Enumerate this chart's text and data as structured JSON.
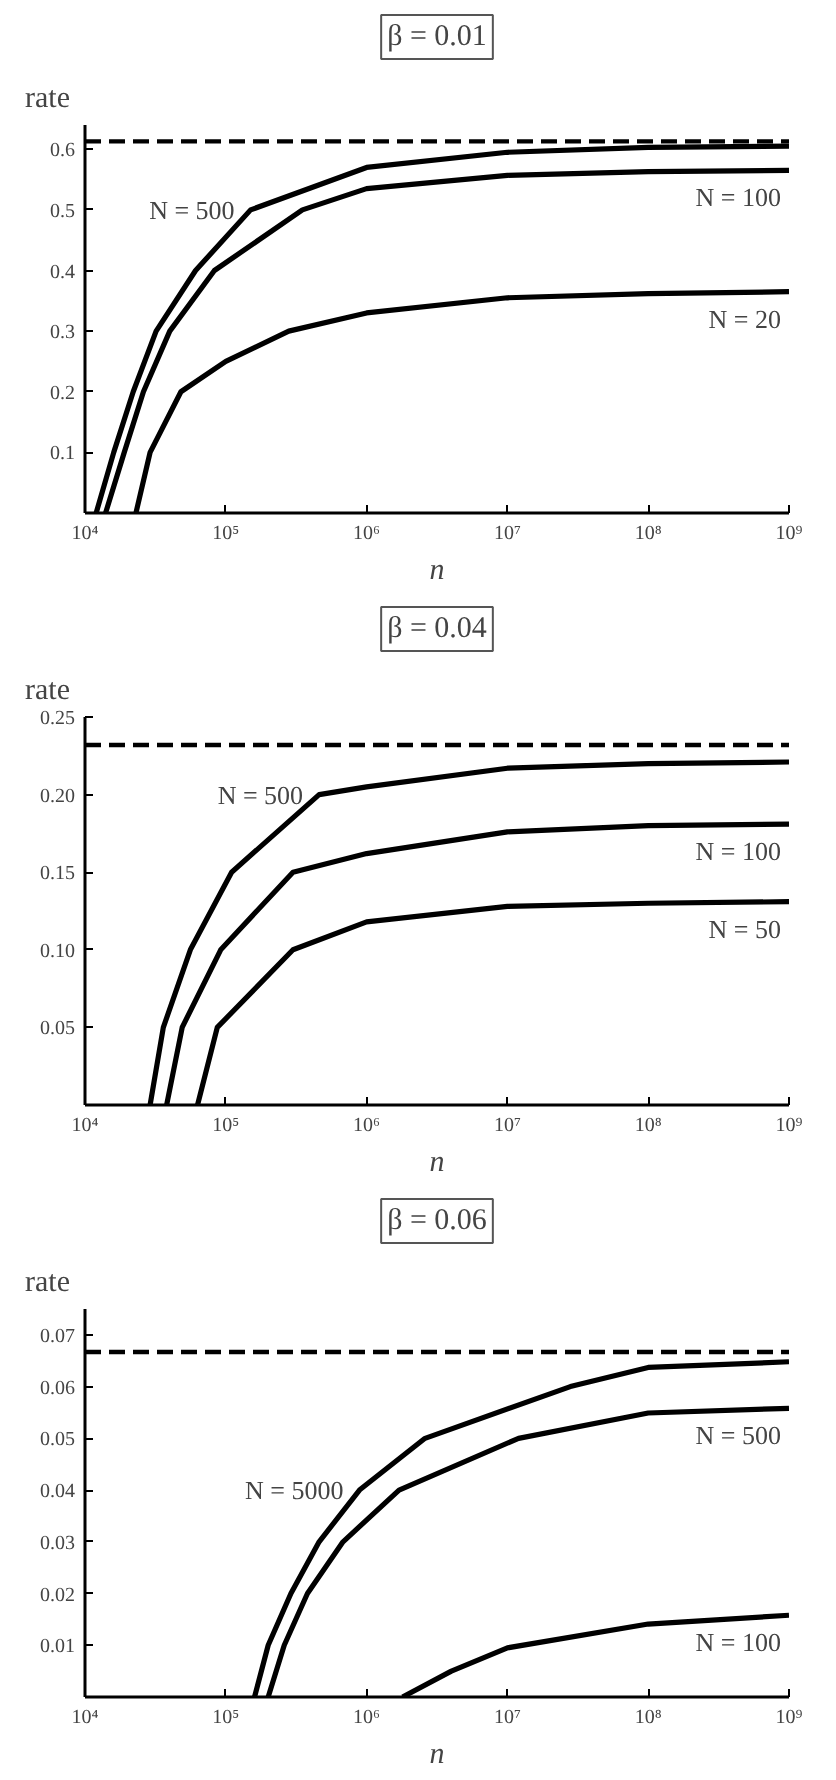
{
  "chart_data": [
    {
      "type": "line",
      "title": "β = 0.01",
      "xlabel": "n",
      "ylabel": "rate",
      "log": "x",
      "line_style": "solid",
      "xlim": [
        10000,
        1000000000
      ],
      "ylim": [
        0,
        0.64
      ],
      "xticks": [
        {
          "value": 10000,
          "label": "10⁴"
        },
        {
          "value": 100000,
          "label": "10⁵"
        },
        {
          "value": 1000000,
          "label": "10⁶"
        },
        {
          "value": 10000000,
          "label": "10⁷"
        },
        {
          "value": 100000000,
          "label": "10⁸"
        },
        {
          "value": 1000000000,
          "label": "10⁹"
        }
      ],
      "yticks": [
        0.1,
        0.2,
        0.3,
        0.4,
        0.5,
        0.6
      ],
      "series": [
        {
          "color": "#000000",
          "x": [
            12000,
            16000,
            22000,
            32000,
            61000,
            150000,
            1000000,
            10000000,
            100000000,
            1000000000
          ],
          "values": [
            0,
            0.1,
            0.2,
            0.3,
            0.4,
            0.5,
            0.57,
            0.595,
            0.603,
            0.605
          ]
        },
        {
          "color": "#000000",
          "x": [
            14000,
            19000,
            26000,
            40000,
            83000,
            350000,
            1000000,
            10000000,
            100000000,
            1000000000
          ],
          "values": [
            0,
            0.1,
            0.2,
            0.3,
            0.4,
            0.5,
            0.535,
            0.557,
            0.563,
            0.565
          ]
        },
        {
          "color": "#000000",
          "x": [
            23000,
            29000,
            48000,
            100000,
            280000,
            1000000,
            10000000,
            100000000,
            1000000000
          ],
          "values": [
            0,
            0.1,
            0.2,
            0.25,
            0.3,
            0.33,
            0.355,
            0.362,
            0.365
          ]
        }
      ],
      "ref_lines": [
        {
          "axis": "y",
          "value": 0.613,
          "label": null,
          "line_style": "dashed",
          "color": "#000000"
        }
      ],
      "annotations": [
        "N = 500",
        "N = 100",
        "N = 20"
      ]
    },
    {
      "type": "line",
      "title": "β = 0.04",
      "xlabel": "n",
      "ylabel": "rate",
      "log": "x",
      "line_style": "solid",
      "xlim": [
        10000,
        1000000000
      ],
      "ylim": [
        0,
        0.25
      ],
      "xticks": [
        {
          "value": 10000,
          "label": "10⁴"
        },
        {
          "value": 100000,
          "label": "10⁵"
        },
        {
          "value": 1000000,
          "label": "10⁶"
        },
        {
          "value": 10000000,
          "label": "10⁷"
        },
        {
          "value": 100000000,
          "label": "10⁸"
        },
        {
          "value": 1000000000,
          "label": "10⁹"
        }
      ],
      "yticks": [
        0.05,
        {
          "value": 0.1,
          "label": "0.10"
        },
        0.15,
        {
          "value": 0.2,
          "label": "0.20"
        },
        0.25
      ],
      "series": [
        {
          "color": "#000000",
          "x": [
            29000,
            36000,
            56000,
            110000,
            460000,
            1000000,
            10000000,
            100000000,
            1000000000
          ],
          "values": [
            0,
            0.05,
            0.1,
            0.15,
            0.2,
            0.205,
            0.217,
            0.22,
            0.221
          ]
        },
        {
          "color": "#000000",
          "x": [
            38000,
            49000,
            92000,
            300000,
            1000000,
            10000000,
            100000000,
            1000000000
          ],
          "values": [
            0,
            0.05,
            0.1,
            0.15,
            0.162,
            0.176,
            0.18,
            0.181
          ]
        },
        {
          "color": "#000000",
          "x": [
            63000,
            87000,
            300000,
            1000000,
            10000000,
            100000000,
            1000000000
          ],
          "values": [
            0,
            0.05,
            0.1,
            0.118,
            0.128,
            0.13,
            0.131
          ]
        }
      ],
      "ref_lines": [
        {
          "axis": "y",
          "value": 0.232,
          "label": null,
          "line_style": "dashed",
          "color": "#000000"
        }
      ],
      "annotations": [
        "N = 500",
        "N = 100",
        "N = 50"
      ]
    },
    {
      "type": "line",
      "title": "β = 0.06",
      "xlabel": "n",
      "ylabel": "rate",
      "log": "x",
      "line_style": "solid",
      "xlim": [
        10000,
        1000000000
      ],
      "ylim": [
        0,
        0.075
      ],
      "xticks": [
        {
          "value": 10000,
          "label": "10⁴"
        },
        {
          "value": 100000,
          "label": "10⁵"
        },
        {
          "value": 1000000,
          "label": "10⁶"
        },
        {
          "value": 10000000,
          "label": "10⁷"
        },
        {
          "value": 100000000,
          "label": "10⁸"
        },
        {
          "value": 1000000000,
          "label": "10⁹"
        }
      ],
      "yticks": [
        0.01,
        0.02,
        0.03,
        0.04,
        0.05,
        0.06,
        0.07
      ],
      "series": [
        {
          "color": "#000000",
          "x": [
            160000,
            200000,
            290000,
            460000,
            890000,
            2600000,
            28000000,
            100000000,
            1000000000
          ],
          "values": [
            0,
            0.01,
            0.02,
            0.03,
            0.04,
            0.05,
            0.06,
            0.0637,
            0.0648
          ]
        },
        {
          "color": "#000000",
          "x": [
            200000,
            260000,
            380000,
            680000,
            1700000,
            12000000,
            100000000,
            1000000000
          ],
          "values": [
            0,
            0.01,
            0.02,
            0.03,
            0.04,
            0.05,
            0.0549,
            0.0558
          ]
        },
        {
          "color": "#000000",
          "x": [
            1800000,
            4000000,
            10000000,
            100000000,
            1000000000
          ],
          "values": [
            0,
            0.005,
            0.0095,
            0.0141,
            0.0158
          ]
        }
      ],
      "ref_lines": [
        {
          "axis": "y",
          "value": 0.0667,
          "label": null,
          "line_style": "dashed",
          "color": "#000000"
        }
      ],
      "annotations": [
        "N = 5000",
        "N = 500",
        "N = 100"
      ]
    }
  ]
}
